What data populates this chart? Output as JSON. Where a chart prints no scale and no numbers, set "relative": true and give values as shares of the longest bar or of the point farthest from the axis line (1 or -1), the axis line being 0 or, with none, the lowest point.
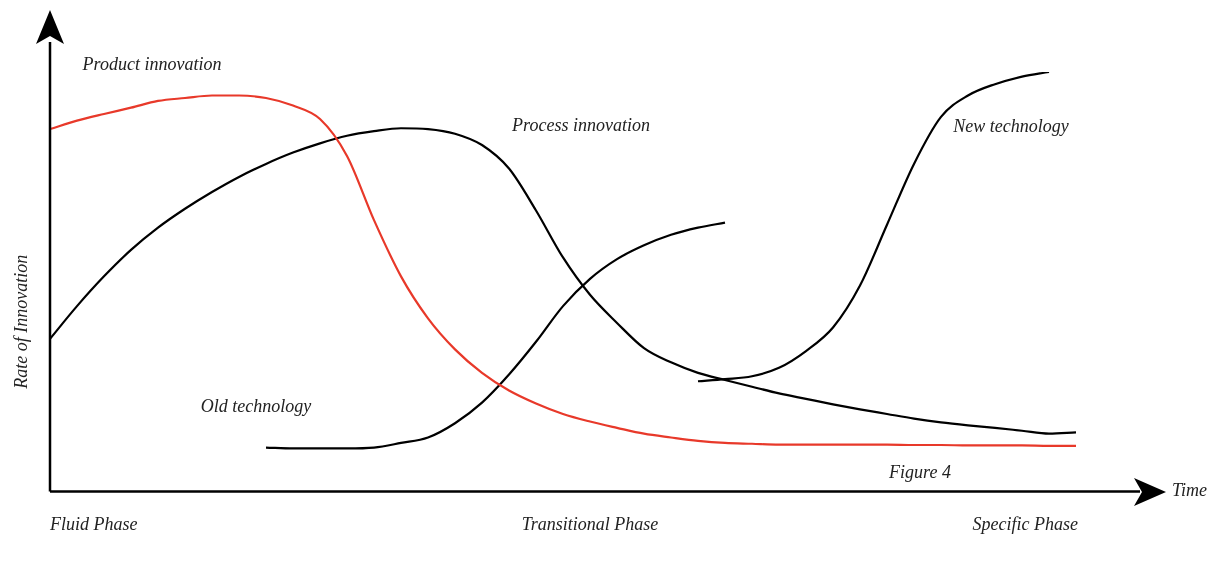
{
  "chart_data": {
    "type": "line",
    "relative": true,
    "xlabel": "Time",
    "ylabel": "Rate of Innovation",
    "annotations": [
      "Figure 4",
      "Fluid Phase",
      "Transitional Phase",
      "Specific Phase"
    ],
    "legend": false,
    "marker": "none",
    "line_style": "solid",
    "categories": [
      null,
      null,
      null,
      null,
      null,
      null,
      null,
      null,
      null,
      null,
      null,
      null,
      null,
      null,
      null,
      null,
      null,
      null,
      null,
      null,
      null,
      null,
      null,
      null,
      null,
      null,
      null,
      null,
      null,
      null,
      null,
      null,
      null,
      null,
      null,
      null,
      null,
      null,
      null,
      null,
      null
    ],
    "series": [
      {
        "name": "Product innovation",
        "color": "#e8392a",
        "values": [
          0.864,
          0.884,
          0.9,
          0.915,
          0.931,
          0.938,
          0.944,
          0.944,
          0.938,
          0.92,
          0.888,
          0.8,
          0.647,
          0.513,
          0.413,
          0.339,
          0.283,
          0.241,
          0.21,
          0.185,
          0.167,
          0.152,
          0.138,
          0.129,
          0.121,
          0.116,
          0.114,
          0.112,
          0.112,
          0.112,
          0.112,
          0.112,
          0.111,
          0.111,
          0.11,
          0.11,
          0.11,
          0.109,
          0.109,
          null,
          null
        ]
      },
      {
        "name": "Process innovation",
        "color": "#000000",
        "values": [
          0.364,
          0.442,
          0.513,
          0.576,
          0.629,
          0.674,
          0.714,
          0.75,
          0.781,
          0.808,
          0.83,
          0.848,
          0.859,
          0.866,
          0.864,
          0.853,
          0.826,
          0.77,
          0.67,
          0.558,
          0.469,
          0.402,
          0.342,
          0.308,
          0.283,
          0.266,
          0.25,
          0.234,
          0.221,
          0.208,
          0.196,
          0.185,
          0.174,
          0.165,
          0.158,
          0.152,
          0.145,
          0.138,
          0.141,
          null,
          null
        ]
      },
      {
        "name": "Old technology",
        "color": "#000000",
        "values": [
          null,
          null,
          null,
          null,
          null,
          null,
          null,
          null,
          0.105,
          0.103,
          0.103,
          0.103,
          0.105,
          0.116,
          0.129,
          0.163,
          0.212,
          0.279,
          0.357,
          0.442,
          0.507,
          0.554,
          0.587,
          0.612,
          0.629,
          0.641,
          null,
          null,
          null,
          null,
          null,
          null,
          null,
          null,
          null,
          null,
          null,
          null,
          null,
          null,
          null
        ]
      },
      {
        "name": "New technology",
        "color": "#000000",
        "values": [
          null,
          null,
          null,
          null,
          null,
          null,
          null,
          null,
          null,
          null,
          null,
          null,
          null,
          null,
          null,
          null,
          null,
          null,
          null,
          null,
          null,
          null,
          null,
          null,
          0.263,
          0.268,
          0.275,
          0.295,
          0.335,
          0.391,
          0.491,
          0.636,
          0.781,
          0.893,
          0.944,
          0.971,
          0.989,
          1.0,
          null,
          null,
          null
        ]
      }
    ]
  }
}
